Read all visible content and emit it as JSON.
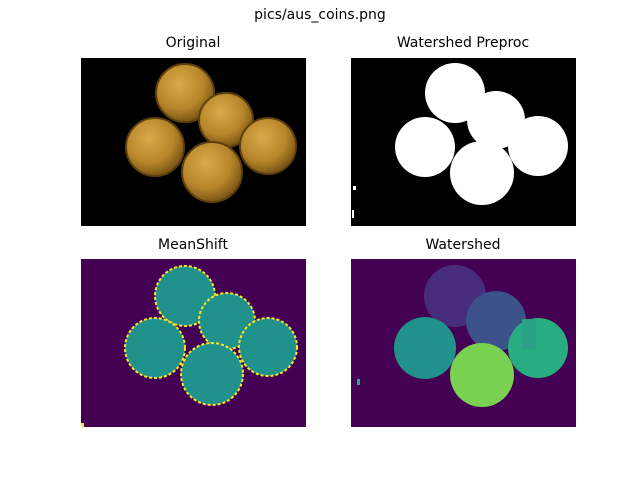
{
  "figure": {
    "title": "pics/aus_coins.png"
  },
  "panels": [
    {
      "title": "Original"
    },
    {
      "title": "Watershed Preproc"
    },
    {
      "title": "MeanShift"
    },
    {
      "title": "Watershed"
    }
  ],
  "colors": {
    "black": "#000000",
    "white": "#ffffff",
    "gold": "#b8862a",
    "gold_dark": "#7a5614",
    "gold_light": "#d9a94a",
    "viridis_dark": "#440154",
    "viridis_teal": "#21918c",
    "viridis_yellow": "#fde725",
    "ws_purple1": "#472d7b",
    "ws_blue": "#3b528b",
    "ws_teal1": "#21918c",
    "ws_green1": "#27ad81",
    "ws_green2": "#7ad151"
  }
}
